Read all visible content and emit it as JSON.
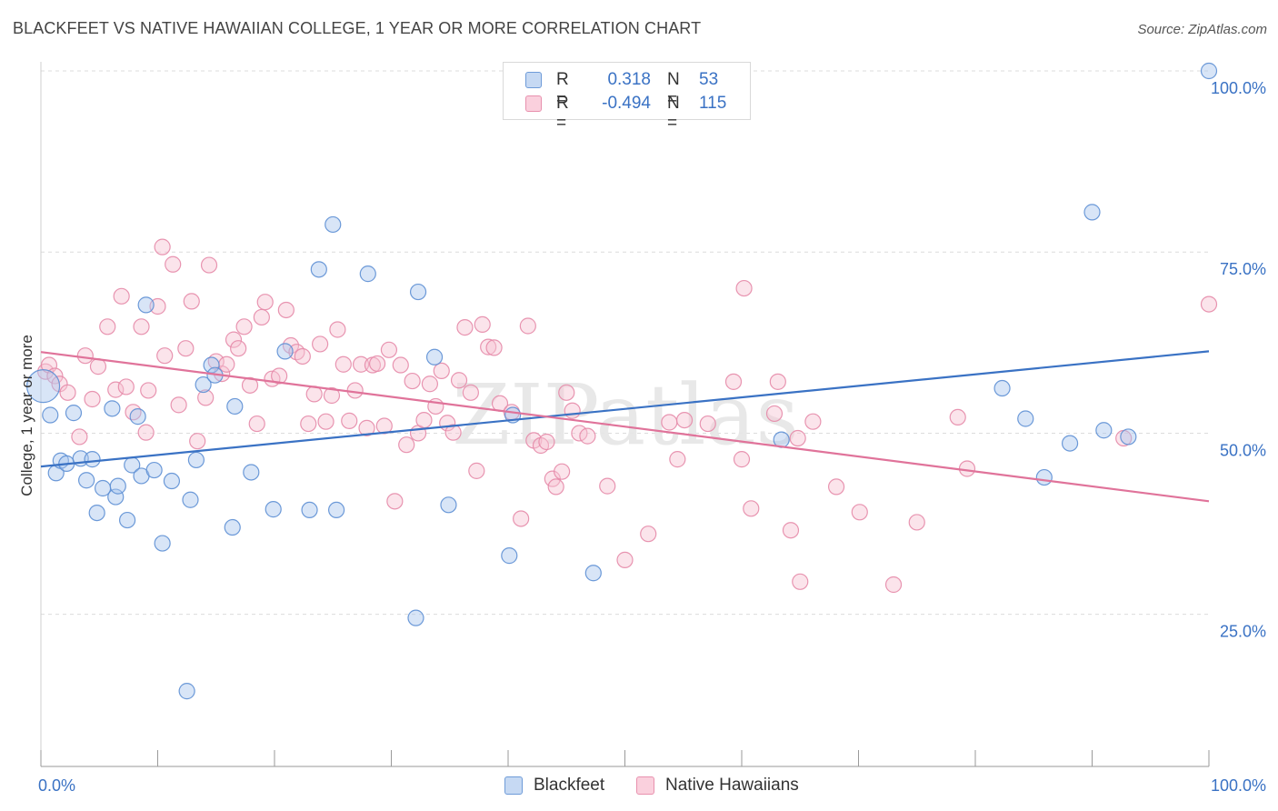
{
  "title": "BLACKFEET VS NATIVE HAWAIIAN COLLEGE, 1 YEAR OR MORE CORRELATION CHART",
  "source": "Source: ZipAtlas.com",
  "watermark": "ZIPatlas",
  "colors": {
    "blue": "#3a72c4",
    "blue_fill": "#a9c6ee",
    "pink": "#e0739a",
    "pink_fill": "#f5b9cc",
    "grid": "#dcdcdc",
    "value_text": "#3a72c4"
  },
  "legend": {
    "rows": [
      {
        "r_label": "R =",
        "r_value": "0.318",
        "n_label": "N =",
        "n_value": "53",
        "color": "blue"
      },
      {
        "r_label": "R =",
        "r_value": "-0.494",
        "n_label": "N =",
        "n_value": "115",
        "color": "pink"
      }
    ]
  },
  "bottom_legend": [
    "Blackfeet",
    "Native Hawaiians"
  ],
  "chart_data": {
    "type": "scatter",
    "title": "BLACKFEET VS NATIVE HAWAIIAN COLLEGE, 1 YEAR OR MORE CORRELATION CHART",
    "xlabel": "",
    "ylabel": "College, 1 year or more",
    "xlim": [
      0,
      100
    ],
    "ylim": [
      4,
      100
    ],
    "x_tick_labels": [
      "0.0%",
      "100.0%"
    ],
    "y_ticks": [
      25,
      50,
      75,
      100
    ],
    "y_tick_labels": [
      "25.0%",
      "50.0%",
      "75.0%",
      "100.0%"
    ],
    "grid": true,
    "legend_position": "top-center",
    "series": [
      {
        "name": "Blackfeet",
        "color": "blue",
        "trend": {
          "x": [
            0,
            100
          ],
          "y": [
            45.4,
            61.3
          ]
        },
        "points": [
          [
            0.2,
            56.5
          ],
          [
            0.8,
            52.5
          ],
          [
            1.3,
            44.5
          ],
          [
            1.7,
            46.2
          ],
          [
            2.2,
            45.8
          ],
          [
            2.8,
            52.8
          ],
          [
            3.4,
            46.5
          ],
          [
            3.9,
            43.5
          ],
          [
            4.4,
            46.4
          ],
          [
            4.8,
            39.0
          ],
          [
            5.3,
            42.4
          ],
          [
            6.1,
            53.4
          ],
          [
            6.4,
            41.2
          ],
          [
            6.6,
            42.7
          ],
          [
            7.4,
            38.0
          ],
          [
            7.8,
            45.6
          ],
          [
            8.3,
            52.3
          ],
          [
            8.6,
            44.1
          ],
          [
            9.0,
            67.7
          ],
          [
            9.7,
            44.9
          ],
          [
            10.4,
            34.8
          ],
          [
            11.2,
            43.4
          ],
          [
            12.5,
            14.4
          ],
          [
            12.8,
            40.8
          ],
          [
            13.3,
            46.3
          ],
          [
            13.9,
            56.7
          ],
          [
            14.6,
            59.4
          ],
          [
            14.9,
            58.0
          ],
          [
            16.4,
            37.0
          ],
          [
            16.6,
            53.7
          ],
          [
            18.0,
            44.6
          ],
          [
            19.9,
            39.5
          ],
          [
            20.9,
            61.3
          ],
          [
            23.0,
            39.4
          ],
          [
            23.8,
            72.6
          ],
          [
            25.0,
            78.8
          ],
          [
            25.3,
            39.4
          ],
          [
            28.0,
            72.0
          ],
          [
            32.1,
            24.5
          ],
          [
            32.3,
            69.5
          ],
          [
            33.7,
            60.5
          ],
          [
            34.9,
            40.1
          ],
          [
            40.1,
            33.1
          ],
          [
            40.4,
            52.5
          ],
          [
            47.3,
            30.7
          ],
          [
            63.4,
            49.1
          ],
          [
            82.3,
            56.2
          ],
          [
            84.3,
            52.0
          ],
          [
            85.9,
            43.9
          ],
          [
            88.1,
            48.6
          ],
          [
            90.0,
            80.5
          ],
          [
            91.0,
            50.4
          ],
          [
            93.1,
            49.5
          ],
          [
            100.0,
            100.0
          ]
        ]
      },
      {
        "name": "Native Hawaiians",
        "color": "pink",
        "trend": {
          "x": [
            0,
            100
          ],
          "y": [
            61.2,
            40.6
          ]
        },
        "points": [
          [
            0.4,
            58.5
          ],
          [
            0.7,
            59.4
          ],
          [
            1.2,
            57.9
          ],
          [
            1.6,
            56.8
          ],
          [
            2.3,
            55.6
          ],
          [
            3.3,
            49.5
          ],
          [
            3.8,
            60.7
          ],
          [
            4.4,
            54.7
          ],
          [
            4.9,
            59.2
          ],
          [
            5.7,
            64.7
          ],
          [
            6.4,
            56.0
          ],
          [
            6.9,
            68.9
          ],
          [
            7.3,
            56.4
          ],
          [
            7.9,
            52.9
          ],
          [
            8.6,
            64.7
          ],
          [
            9.0,
            50.1
          ],
          [
            9.2,
            55.9
          ],
          [
            10.0,
            67.5
          ],
          [
            10.4,
            75.7
          ],
          [
            10.6,
            60.7
          ],
          [
            11.3,
            73.3
          ],
          [
            11.8,
            53.9
          ],
          [
            12.4,
            61.7
          ],
          [
            12.9,
            68.2
          ],
          [
            13.4,
            48.9
          ],
          [
            14.1,
            54.9
          ],
          [
            14.4,
            73.2
          ],
          [
            15.0,
            59.9
          ],
          [
            15.5,
            58.2
          ],
          [
            15.9,
            59.5
          ],
          [
            16.5,
            62.9
          ],
          [
            16.9,
            61.7
          ],
          [
            17.4,
            64.7
          ],
          [
            17.9,
            56.6
          ],
          [
            18.5,
            51.3
          ],
          [
            18.9,
            66.0
          ],
          [
            19.2,
            68.1
          ],
          [
            19.8,
            57.5
          ],
          [
            20.4,
            57.9
          ],
          [
            21.0,
            67.0
          ],
          [
            21.4,
            62.1
          ],
          [
            21.9,
            61.2
          ],
          [
            22.4,
            60.6
          ],
          [
            22.9,
            51.3
          ],
          [
            23.4,
            55.4
          ],
          [
            23.9,
            62.3
          ],
          [
            24.4,
            51.6
          ],
          [
            24.9,
            55.2
          ],
          [
            25.4,
            64.3
          ],
          [
            25.9,
            59.5
          ],
          [
            26.4,
            51.7
          ],
          [
            26.9,
            55.9
          ],
          [
            27.4,
            59.5
          ],
          [
            27.9,
            50.7
          ],
          [
            28.4,
            59.4
          ],
          [
            28.8,
            59.6
          ],
          [
            29.4,
            51.0
          ],
          [
            29.8,
            61.5
          ],
          [
            30.3,
            40.6
          ],
          [
            30.8,
            59.4
          ],
          [
            31.3,
            48.4
          ],
          [
            31.8,
            57.2
          ],
          [
            32.3,
            50.0
          ],
          [
            32.8,
            51.8
          ],
          [
            33.3,
            56.8
          ],
          [
            33.8,
            53.7
          ],
          [
            34.3,
            58.6
          ],
          [
            34.8,
            51.4
          ],
          [
            35.3,
            50.1
          ],
          [
            35.8,
            57.3
          ],
          [
            36.3,
            64.6
          ],
          [
            36.8,
            55.6
          ],
          [
            37.3,
            44.8
          ],
          [
            37.8,
            65.0
          ],
          [
            38.3,
            61.9
          ],
          [
            38.8,
            61.8
          ],
          [
            39.3,
            54.1
          ],
          [
            40.3,
            52.9
          ],
          [
            41.1,
            38.2
          ],
          [
            41.7,
            64.8
          ],
          [
            42.2,
            49.0
          ],
          [
            42.8,
            48.3
          ],
          [
            43.3,
            48.8
          ],
          [
            43.8,
            43.7
          ],
          [
            44.1,
            42.6
          ],
          [
            44.6,
            44.7
          ],
          [
            45.0,
            55.6
          ],
          [
            45.5,
            53.1
          ],
          [
            46.1,
            50.0
          ],
          [
            46.8,
            49.6
          ],
          [
            48.5,
            42.7
          ],
          [
            50.0,
            32.5
          ],
          [
            52.0,
            36.1
          ],
          [
            53.8,
            51.5
          ],
          [
            54.5,
            46.4
          ],
          [
            55.1,
            51.8
          ],
          [
            57.1,
            51.3
          ],
          [
            59.3,
            57.1
          ],
          [
            60.0,
            46.4
          ],
          [
            60.2,
            70.0
          ],
          [
            60.8,
            39.6
          ],
          [
            62.8,
            52.7
          ],
          [
            63.1,
            57.1
          ],
          [
            64.2,
            36.6
          ],
          [
            64.8,
            49.3
          ],
          [
            65.0,
            29.5
          ],
          [
            66.1,
            51.6
          ],
          [
            68.1,
            42.6
          ],
          [
            70.1,
            39.1
          ],
          [
            73.0,
            29.1
          ],
          [
            75.0,
            37.7
          ],
          [
            78.5,
            52.2
          ],
          [
            79.3,
            45.1
          ],
          [
            92.7,
            49.3
          ],
          [
            100.0,
            67.8
          ]
        ]
      }
    ]
  }
}
